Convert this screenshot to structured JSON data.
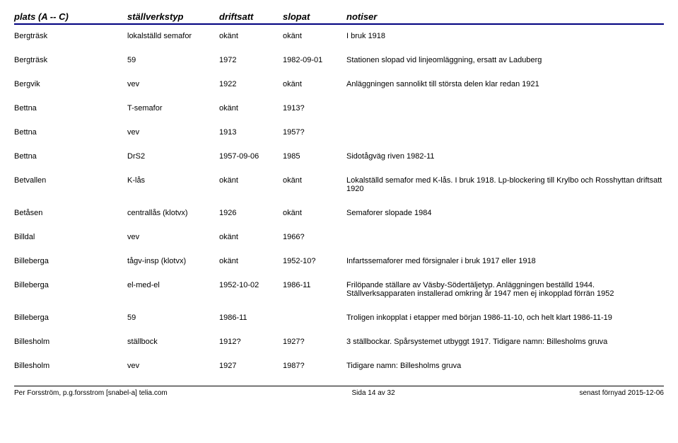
{
  "header": {
    "plats": "plats (A -- C)",
    "stallverkstyp": "ställverkstyp",
    "driftsatt": "driftsatt",
    "slopat": "slopat",
    "notiser": "notiser"
  },
  "rows": [
    {
      "plats": "Bergträsk",
      "styp": "lokalställd semafor",
      "drift": "okänt",
      "slop": "okänt",
      "not": "I bruk 1918"
    },
    {
      "plats": "Bergträsk",
      "styp": "59",
      "drift": "1972",
      "slop": "1982-09-01",
      "not": "Stationen slopad vid linjeomläggning, ersatt av Laduberg"
    },
    {
      "plats": "Bergvik",
      "styp": "vev",
      "drift": "1922",
      "slop": "okänt",
      "not": "Anläggningen sannolikt till största delen klar redan 1921"
    },
    {
      "plats": "Bettna",
      "styp": "T-semafor",
      "drift": "okänt",
      "slop": "1913?",
      "not": ""
    },
    {
      "plats": "Bettna",
      "styp": "vev",
      "drift": "1913",
      "slop": "1957?",
      "not": ""
    },
    {
      "plats": "Bettna",
      "styp": "DrS2",
      "drift": "1957-09-06",
      "slop": "1985",
      "not": "Sidotågväg riven 1982-11"
    },
    {
      "plats": "Betvallen",
      "styp": "K-lås",
      "drift": "okänt",
      "slop": "okänt",
      "not": "Lokalställd semafor med K-lås. I bruk 1918. Lp-blockering till Krylbo och Rosshyttan driftsatt 1920"
    },
    {
      "plats": "Betåsen",
      "styp": "centrallås (klotvx)",
      "drift": "1926",
      "slop": "okänt",
      "not": "Semaforer slopade 1984"
    },
    {
      "plats": "Billdal",
      "styp": "vev",
      "drift": "okänt",
      "slop": "1966?",
      "not": ""
    },
    {
      "plats": "Billeberga",
      "styp": "tågv-insp (klotvx)",
      "drift": "okänt",
      "slop": "1952-10?",
      "not": "Infartssemaforer med försignaler i bruk 1917 eller 1918"
    },
    {
      "plats": "Billeberga",
      "styp": "el-med-el",
      "drift": "1952-10-02",
      "slop": "1986-11",
      "not": "Frilöpande ställare av Väsby-Södertäljetyp. Anläggningen beställd 1944. Ställverksapparaten installerad omkring år 1947 men ej inkopplad förrän 1952"
    },
    {
      "plats": "Billeberga",
      "styp": "59",
      "drift": "1986-11",
      "slop": "",
      "not": "Troligen inkopplat i etapper med början 1986-11-10, och helt klart 1986-11-19"
    },
    {
      "plats": "Billesholm",
      "styp": "ställbock",
      "drift": "1912?",
      "slop": "1927?",
      "not": "3 ställbockar. Spårsystemet utbyggt 1917. Tidigare namn: Billesholms gruva"
    },
    {
      "plats": "Billesholm",
      "styp": "vev",
      "drift": "1927",
      "slop": "1987?",
      "not": "Tidigare namn: Billesholms gruva"
    }
  ],
  "footer": {
    "left": "Per Forsström, p.g.forsstrom [snabel-a] telia.com",
    "center": "Sida 14 av 32",
    "right": "senast förnyad 2015-12-06"
  },
  "colors": {
    "header_border": "#000080",
    "text": "#000000",
    "background": "#ffffff"
  },
  "typography": {
    "header_fontsize": 13,
    "row_fontsize": 11,
    "footer_fontsize": 10,
    "font_family": "Arial"
  }
}
